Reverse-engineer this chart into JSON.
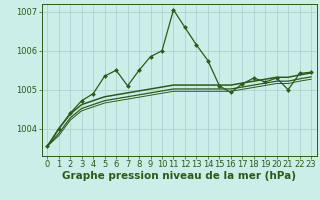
{
  "bg_color": "#cceee8",
  "grid_color": "#aad4ce",
  "line_color": "#2d5a1b",
  "xlabel": "Graphe pression niveau de la mer (hPa)",
  "xlabel_fontsize": 7.5,
  "tick_fontsize": 6.0,
  "ylim": [
    1003.3,
    1007.2
  ],
  "yticks": [
    1004,
    1005,
    1006,
    1007
  ],
  "xticks": [
    0,
    1,
    2,
    3,
    4,
    5,
    6,
    7,
    8,
    9,
    10,
    11,
    12,
    13,
    14,
    15,
    16,
    17,
    18,
    19,
    20,
    21,
    22,
    23
  ],
  "series": [
    {
      "x": [
        0,
        1,
        2,
        3,
        4,
        5,
        6,
        7,
        8,
        9,
        10,
        11,
        12,
        13,
        14,
        15,
        16,
        17,
        18,
        19,
        20,
        21,
        22,
        23
      ],
      "y": [
        1003.55,
        1004.0,
        1004.4,
        1004.72,
        1004.9,
        1005.35,
        1005.5,
        1005.1,
        1005.5,
        1005.85,
        1006.0,
        1007.05,
        1006.6,
        1006.15,
        1005.75,
        1005.1,
        1004.93,
        1005.15,
        1005.3,
        1005.2,
        1005.3,
        1005.0,
        1005.42,
        1005.45
      ],
      "marker": "D",
      "markersize": 2.0,
      "linewidth": 0.9
    },
    {
      "x": [
        0,
        1,
        2,
        3,
        4,
        5,
        6,
        7,
        8,
        9,
        10,
        11,
        12,
        13,
        14,
        15,
        16,
        17,
        18,
        19,
        20,
        21,
        22,
        23
      ],
      "y": [
        1003.55,
        1004.0,
        1004.38,
        1004.62,
        1004.72,
        1004.82,
        1004.87,
        1004.92,
        1004.97,
        1005.02,
        1005.07,
        1005.12,
        1005.12,
        1005.12,
        1005.12,
        1005.12,
        1005.12,
        1005.17,
        1005.22,
        1005.27,
        1005.32,
        1005.32,
        1005.38,
        1005.43
      ],
      "marker": null,
      "markersize": 0,
      "linewidth": 1.1
    },
    {
      "x": [
        0,
        1,
        2,
        3,
        4,
        5,
        6,
        7,
        8,
        9,
        10,
        11,
        12,
        13,
        14,
        15,
        16,
        17,
        18,
        19,
        20,
        21,
        22,
        23
      ],
      "y": [
        1003.55,
        1003.88,
        1004.28,
        1004.52,
        1004.62,
        1004.72,
        1004.77,
        1004.82,
        1004.87,
        1004.92,
        1004.97,
        1005.02,
        1005.02,
        1005.02,
        1005.02,
        1005.02,
        1005.02,
        1005.07,
        1005.12,
        1005.17,
        1005.22,
        1005.22,
        1005.28,
        1005.33
      ],
      "marker": null,
      "markersize": 0,
      "linewidth": 0.9
    },
    {
      "x": [
        0,
        1,
        2,
        3,
        4,
        5,
        6,
        7,
        8,
        9,
        10,
        11,
        12,
        13,
        14,
        15,
        16,
        17,
        18,
        19,
        20,
        21,
        22,
        23
      ],
      "y": [
        1003.55,
        1003.82,
        1004.22,
        1004.46,
        1004.56,
        1004.66,
        1004.71,
        1004.76,
        1004.81,
        1004.86,
        1004.91,
        1004.96,
        1004.96,
        1004.96,
        1004.96,
        1004.96,
        1004.96,
        1005.01,
        1005.06,
        1005.11,
        1005.16,
        1005.16,
        1005.22,
        1005.27
      ],
      "marker": null,
      "markersize": 0,
      "linewidth": 0.7
    }
  ]
}
